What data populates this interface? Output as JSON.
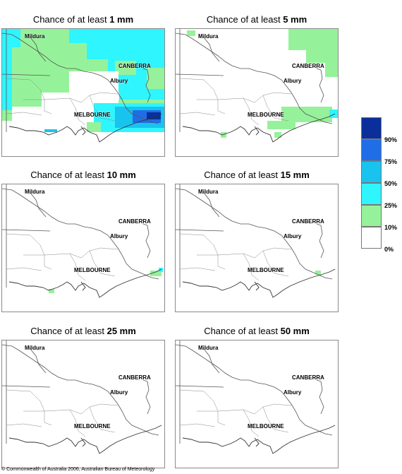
{
  "panels": [
    {
      "title_prefix": "Chance of at least ",
      "amount": "1 mm",
      "level": "1mm"
    },
    {
      "title_prefix": "Chance of at least ",
      "amount": "5 mm",
      "level": "5mm"
    },
    {
      "title_prefix": "Chance of at least ",
      "amount": "10 mm",
      "level": "10mm"
    },
    {
      "title_prefix": "Chance of at least ",
      "amount": "15 mm",
      "level": "15mm"
    },
    {
      "title_prefix": "Chance of at least ",
      "amount": "25 mm",
      "level": "25mm"
    },
    {
      "title_prefix": "Chance of at least ",
      "amount": "50 mm",
      "level": "50mm"
    }
  ],
  "places": {
    "mildura": "Mildura",
    "canberra": "CANBERRA",
    "albury": "Albury",
    "melbourne": "MELBOURNE"
  },
  "legend": {
    "labels": [
      "90%",
      "75%",
      "50%",
      "25%",
      "10%",
      "0%"
    ],
    "colors": [
      "#0a2f9a",
      "#1f6ee8",
      "#18c3ee",
      "#2ff5ff",
      "#96f29a",
      "#ffffff"
    ]
  },
  "copyright": "© Commonwealth of Australia 2006, Australian Bureau of Meteorology"
}
